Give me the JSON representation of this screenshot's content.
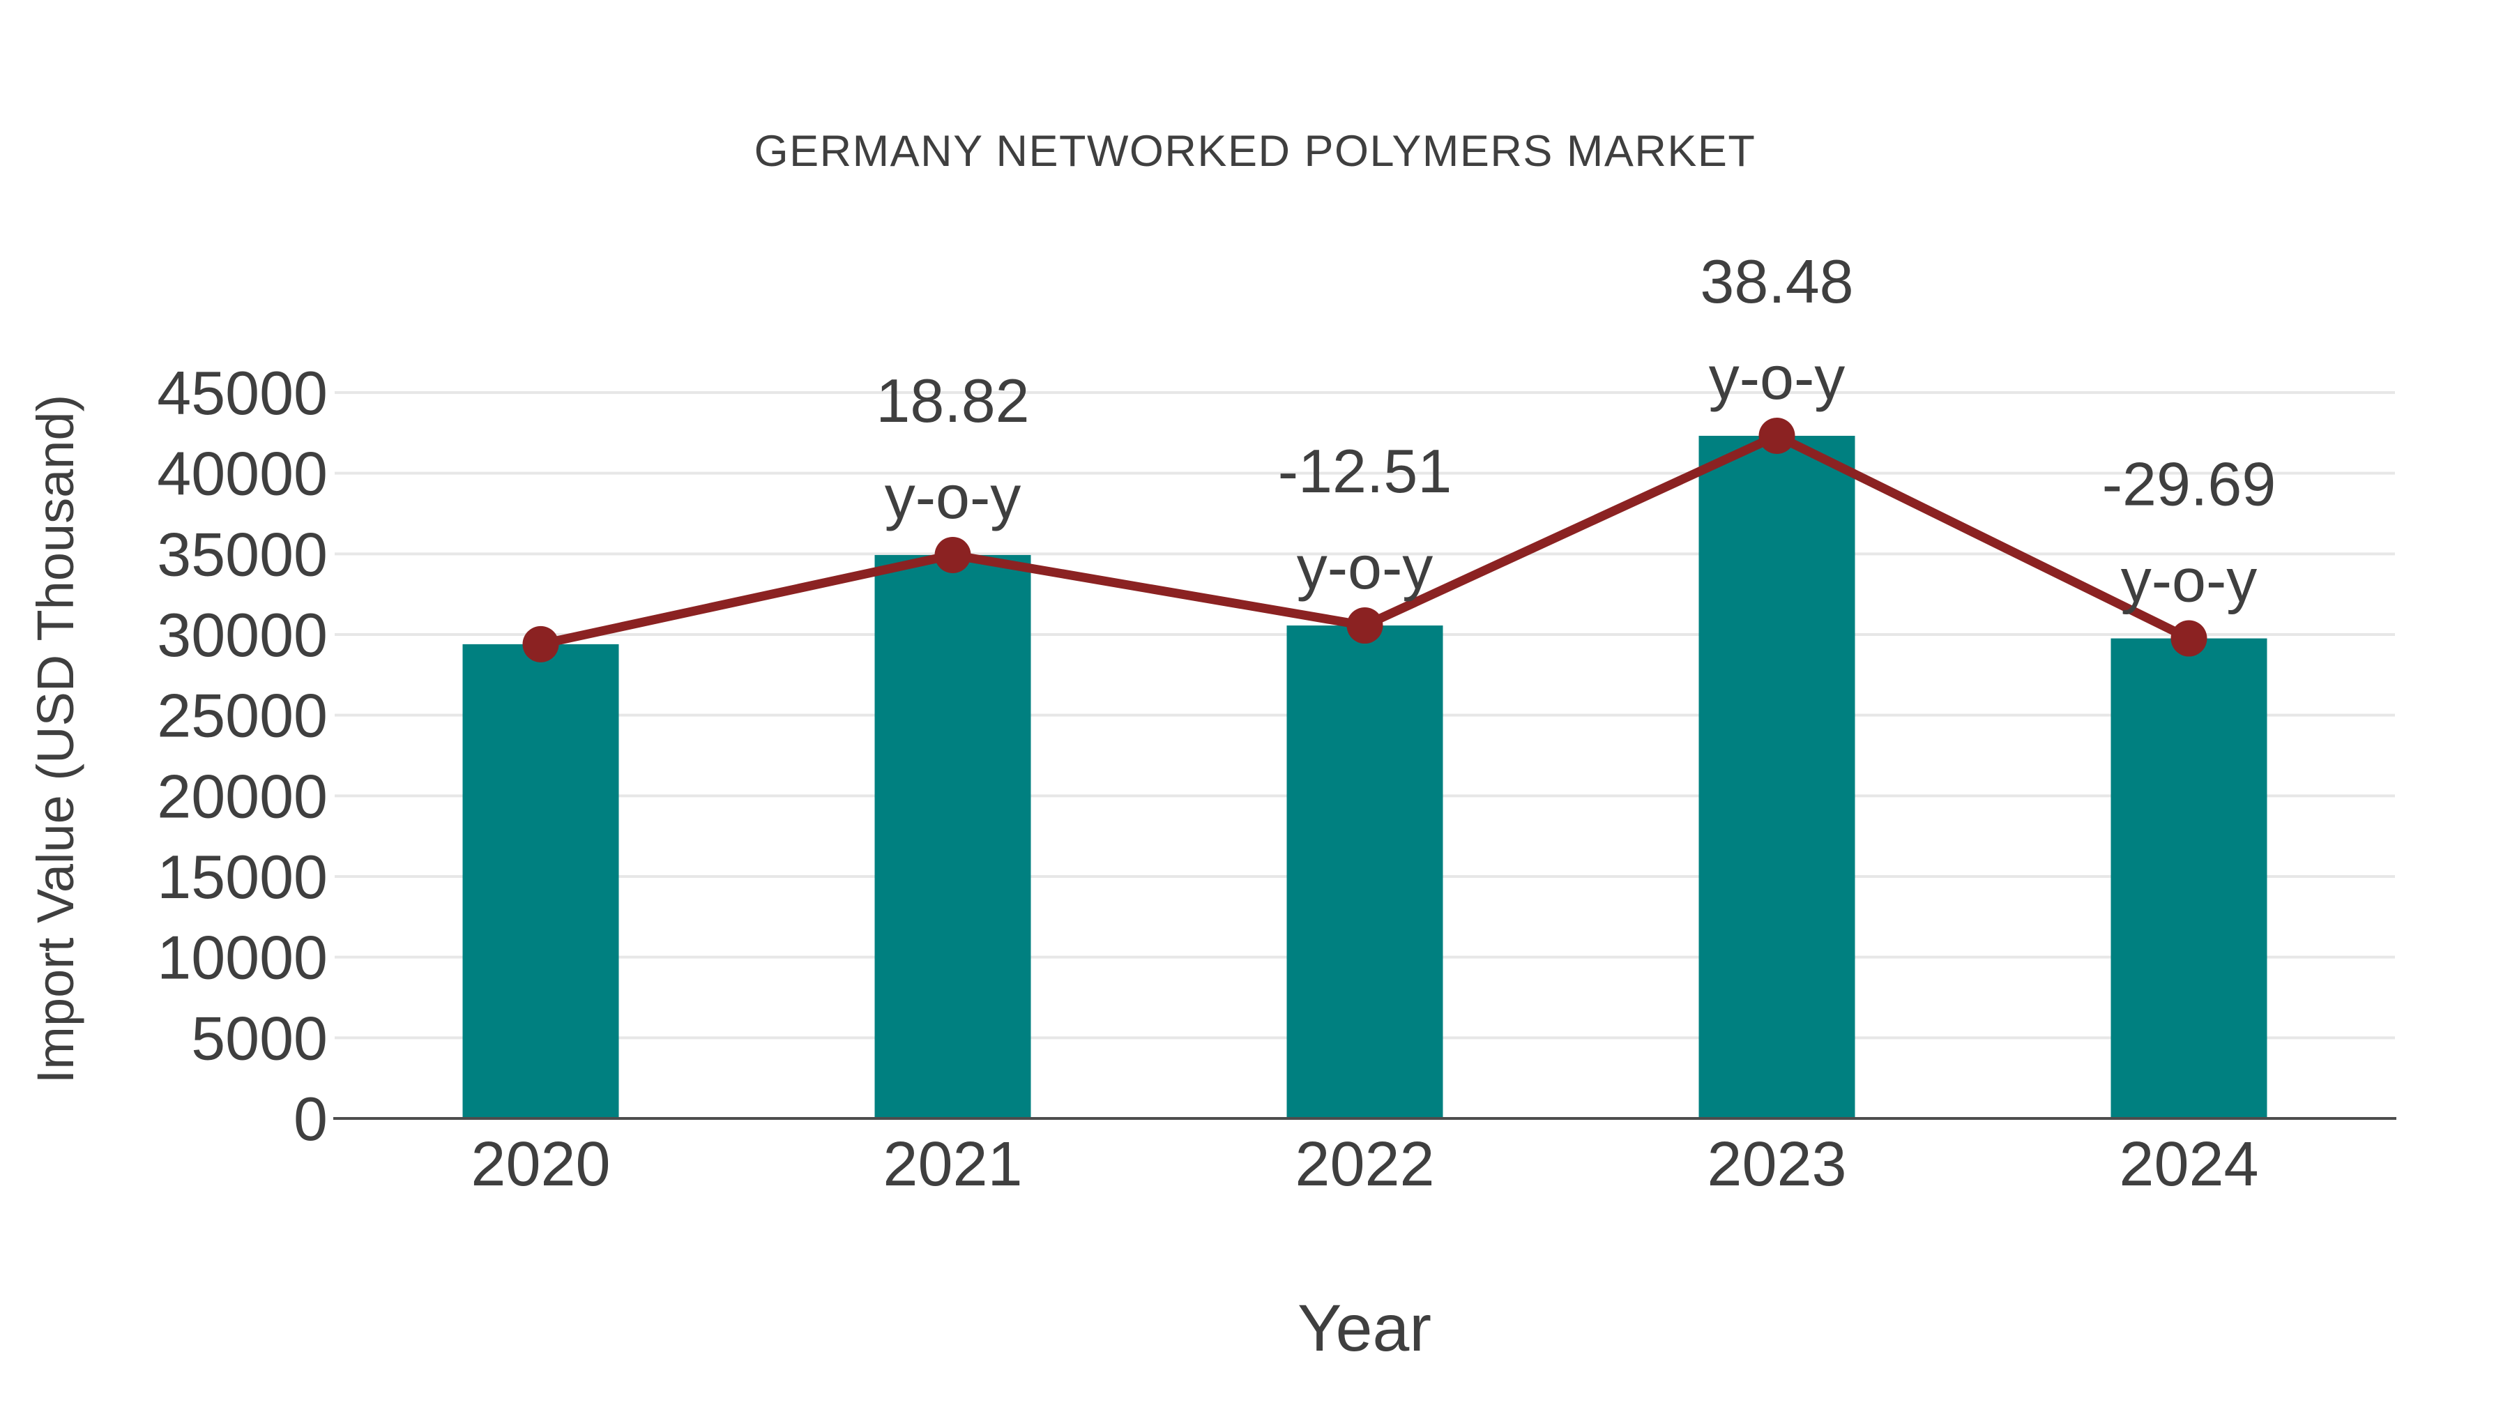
{
  "chart_data": {
    "type": "bar",
    "title": "GERMANY NETWORKED POLYMERS MARKET",
    "xlabel": "Year",
    "ylabel": "Import Value (USD Thousand)",
    "categories": [
      "2020",
      "2021",
      "2022",
      "2023",
      "2024"
    ],
    "values": [
      29400,
      34930,
      30560,
      42320,
      29760
    ],
    "yoy_percent": [
      null,
      18.82,
      -12.51,
      38.48,
      -29.69
    ],
    "yoy_labels": [
      "",
      "18.82",
      "-12.51",
      "38.48",
      "-29.69"
    ],
    "yoy_suffix": "y-o-y",
    "ylim": [
      0,
      45000
    ],
    "yticks": [
      0,
      5000,
      10000,
      15000,
      20000,
      25000,
      30000,
      35000,
      40000,
      45000
    ],
    "grid": true,
    "legend": "none",
    "overlay_line": "y-o-y markers plotted at bar tops",
    "colors": {
      "bar": "#008080",
      "line": "#8b2222",
      "marker": "#8b2222",
      "grid": "#e7e7e7",
      "axis": "#4d4d4d",
      "text": "#3f3f3f"
    }
  }
}
